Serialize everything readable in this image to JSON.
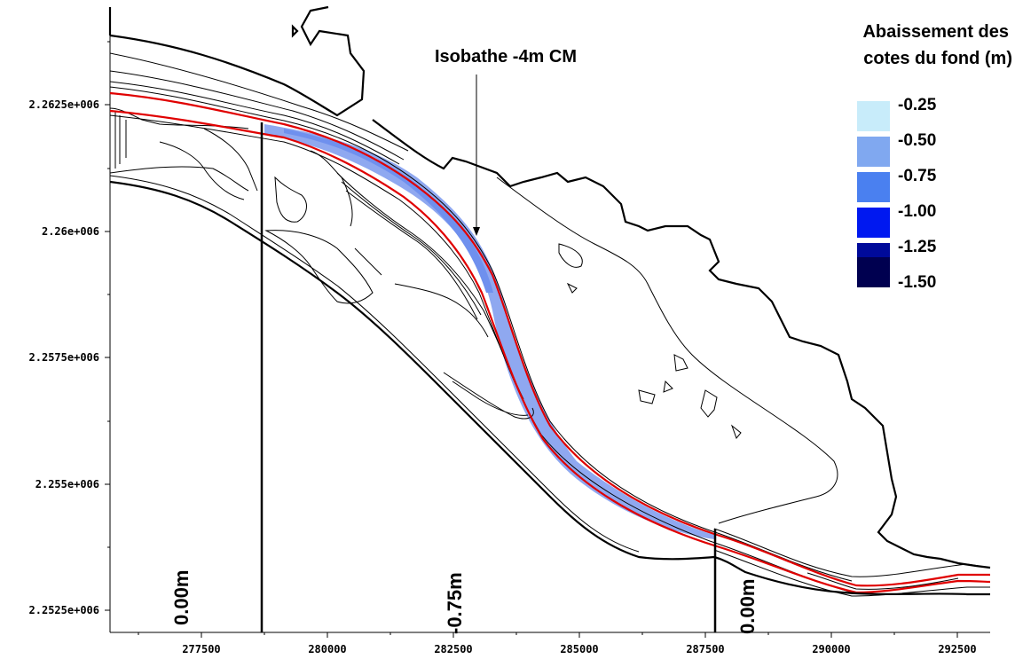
{
  "map": {
    "annotation": "Isobathe -4m CM",
    "legend": {
      "title_line1": "Abaissement des",
      "title_line2": "cotes du fond (m)",
      "entries": [
        {
          "label": "-0.25",
          "color": "#c8ecfa"
        },
        {
          "label": "-0.50",
          "color": "#80a8f0"
        },
        {
          "label": "-0.75",
          "color": "#4a80f0"
        },
        {
          "label": "-1.00",
          "color": "#0018f0"
        },
        {
          "label": "-1.25",
          "color": "#000a9a"
        },
        {
          "label": "-1.50",
          "color": "#000050"
        }
      ]
    },
    "x_ticks": [
      "277500",
      "280000",
      "282500",
      "285000",
      "287500",
      "290000",
      "292500"
    ],
    "y_ticks": [
      "2.2625e+006",
      "2.26e+006",
      "2.2575e+006",
      "2.255e+006",
      "2.2525e+006"
    ],
    "section_labels": [
      "0.00m",
      "-0.75m",
      "0.00m"
    ],
    "channel_fill_color": "#8fa8f0",
    "contour_highlight_color": "#e00000"
  }
}
